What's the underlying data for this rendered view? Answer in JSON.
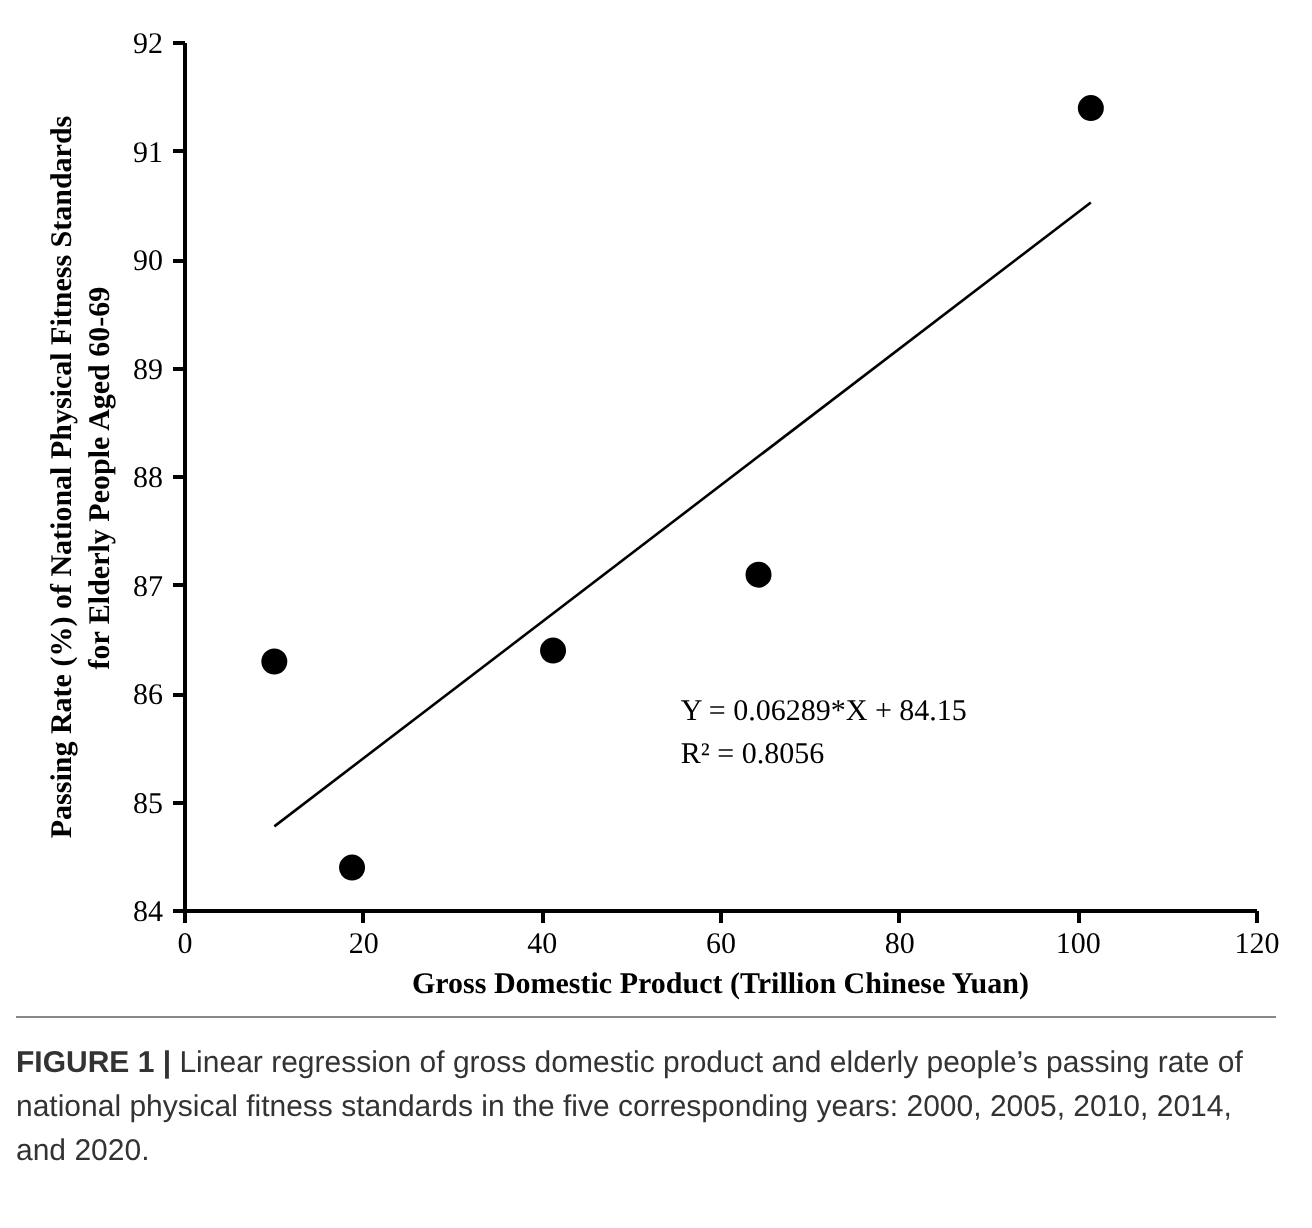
{
  "chart_data": {
    "type": "scatter",
    "xlabel": "Gross Domestic Product (Trillion Chinese Yuan)",
    "ylabel": "Passing Rate (%) of National Physical Fitness Standards\nfor Elderly People Aged 60-69",
    "x": [
      10.0,
      18.7,
      41.2,
      64.2,
      101.4
    ],
    "series": [
      {
        "color": "#000000",
        "marker": "circle",
        "values": [
          86.3,
          84.4,
          86.4,
          87.1,
          91.4
        ]
      },
      {
        "type": "line",
        "color": "#000000",
        "x": [
          10.0,
          101.4
        ],
        "values": [
          84.78,
          90.53
        ]
      }
    ],
    "xlim": [
      0,
      120
    ],
    "ylim": [
      84,
      92
    ],
    "xticks": [
      0,
      20,
      40,
      60,
      80,
      100,
      120
    ],
    "yticks": [
      84,
      85,
      86,
      87,
      88,
      89,
      90,
      91,
      92
    ],
    "grid": false,
    "annotations": [
      "Y = 0.06289*X + 84.15",
      "R² = 0.8056",
      "FIGURE 1 | Linear regression of gross domestic product and elderly people’s passing rate of national physical fitness standards in the five corresponding years: 2000, 2005, 2010, 2014, and 2020."
    ]
  }
}
